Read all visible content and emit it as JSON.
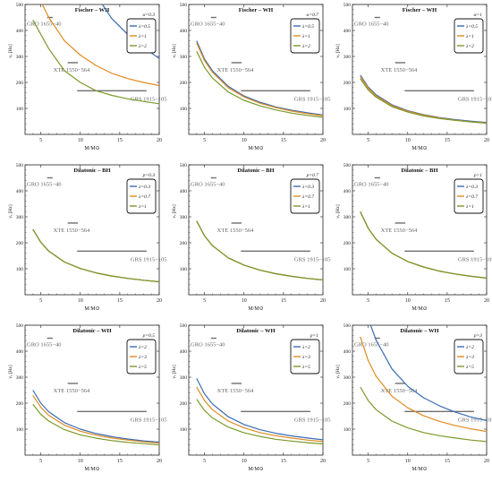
{
  "chart_data": [
    {
      "type": "line",
      "title": "Fischer – WH",
      "param": "α=0.3",
      "xlabel": "M/M⊙",
      "ylabel": "νₑ [Hz]",
      "xlim": [
        3,
        20
      ],
      "ylim": [
        0,
        500
      ],
      "xticks": [
        5,
        10,
        15,
        20
      ],
      "yticks": [
        100,
        200,
        300,
        400,
        500
      ],
      "colors": [
        "#3a6cb4",
        "#e08a1e",
        "#7a9a2a"
      ],
      "series": [
        {
          "name": "λ=0.5",
          "x": [
            12.8,
            14,
            16,
            18,
            20
          ],
          "y": [
            500,
            445,
            385,
            335,
            292
          ]
        },
        {
          "name": "λ=1",
          "x": [
            5.2,
            6,
            8,
            10,
            12,
            14,
            16,
            18,
            20
          ],
          "y": [
            500,
            450,
            360,
            305,
            265,
            235,
            215,
            200,
            188
          ]
        },
        {
          "name": "λ=2",
          "x": [
            4,
            5,
            6,
            8,
            10,
            12,
            14,
            16,
            18,
            20
          ],
          "y": [
            440,
            385,
            330,
            245,
            200,
            168,
            150,
            137,
            127,
            118
          ]
        }
      ],
      "observations": [
        {
          "label": "GRO 1655−40",
          "xmin": 5.8,
          "xmax": 6.5,
          "y": 450
        },
        {
          "label": "XTE 1550−564",
          "xmin": 8.4,
          "xmax": 9.7,
          "y": 276
        },
        {
          "label": "GRS 1915−105",
          "xmin": 9.6,
          "xmax": 18.4,
          "y": 168
        }
      ]
    },
    {
      "type": "line",
      "title": "Fischer – WH",
      "param": "α=0.7",
      "xlabel": "M/M⊙",
      "ylabel": "νₑ [Hz]",
      "xlim": [
        3,
        20
      ],
      "ylim": [
        0,
        500
      ],
      "xticks": [
        5,
        10,
        15,
        20
      ],
      "yticks": [
        100,
        200,
        300,
        400,
        500
      ],
      "colors": [
        "#3a6cb4",
        "#e08a1e",
        "#7a9a2a"
      ],
      "series": [
        {
          "name": "λ=0.5",
          "x": [
            4,
            5,
            6,
            8,
            10,
            12,
            14,
            16,
            18,
            20
          ],
          "y": [
            360,
            290,
            245,
            185,
            148,
            124,
            106,
            93,
            83,
            75
          ]
        },
        {
          "name": "λ=1",
          "x": [
            4,
            5,
            6,
            8,
            10,
            12,
            14,
            16,
            18,
            20
          ],
          "y": [
            352,
            284,
            239,
            180,
            144,
            120,
            103,
            90,
            80,
            72
          ]
        },
        {
          "name": "λ=2",
          "x": [
            4,
            5,
            6,
            8,
            10,
            12,
            14,
            16,
            18,
            20
          ],
          "y": [
            320,
            258,
            217,
            163,
            131,
            110,
            94,
            82,
            73,
            66
          ]
        }
      ],
      "observations": [
        {
          "label": "GRO 1655−40",
          "xmin": 5.8,
          "xmax": 6.5,
          "y": 450
        },
        {
          "label": "XTE 1550−564",
          "xmin": 8.4,
          "xmax": 9.7,
          "y": 276
        },
        {
          "label": "GRS 1915−105",
          "xmin": 9.6,
          "xmax": 18.4,
          "y": 168
        }
      ]
    },
    {
      "type": "line",
      "title": "Fischer – WH",
      "param": "α=1",
      "xlabel": "M/M⊙",
      "ylabel": "νₑ [Hz]",
      "xlim": [
        3,
        20
      ],
      "ylim": [
        0,
        500
      ],
      "xticks": [
        5,
        10,
        15,
        20
      ],
      "yticks": [
        100,
        200,
        300,
        400,
        500
      ],
      "colors": [
        "#3a6cb4",
        "#e08a1e",
        "#7a9a2a"
      ],
      "series": [
        {
          "name": "λ=0.5",
          "x": [
            4,
            5,
            6,
            8,
            10,
            12,
            14,
            16,
            18,
            20
          ],
          "y": [
            228,
            182,
            152,
            114,
            91,
            76,
            65,
            57,
            51,
            46
          ]
        },
        {
          "name": "λ=1",
          "x": [
            4,
            5,
            6,
            8,
            10,
            12,
            14,
            16,
            18,
            20
          ],
          "y": [
            222,
            178,
            148,
            111,
            89,
            74,
            63,
            55,
            49,
            44
          ]
        },
        {
          "name": "λ=2",
          "x": [
            4,
            5,
            6,
            8,
            10,
            12,
            14,
            16,
            18,
            20
          ],
          "y": [
            214,
            171,
            143,
            107,
            86,
            71,
            61,
            54,
            48,
            43
          ]
        }
      ],
      "observations": [
        {
          "label": "GRO 1655−40",
          "xmin": 5.8,
          "xmax": 6.5,
          "y": 450
        },
        {
          "label": "XTE 1550−564",
          "xmin": 8.4,
          "xmax": 9.7,
          "y": 276
        },
        {
          "label": "GRS 1915−105",
          "xmin": 9.6,
          "xmax": 18.4,
          "y": 168
        }
      ]
    },
    {
      "type": "line",
      "title": "Dilatonic – BH",
      "param": "p=0.3",
      "xlabel": "M/M⊙",
      "ylabel": "νₑ [Hz]",
      "xlim": [
        3,
        20
      ],
      "ylim": [
        0,
        500
      ],
      "xticks": [
        5,
        10,
        15,
        20
      ],
      "yticks": [
        100,
        200,
        300,
        400,
        500
      ],
      "colors": [
        "#3a6cb4",
        "#e08a1e",
        "#7a9a2a"
      ],
      "series": [
        {
          "name": "λ=0.3",
          "x": [
            4,
            5,
            6,
            8,
            10,
            12,
            14,
            16,
            18,
            20
          ],
          "y": [
            252,
            202,
            168,
            126,
            101,
            84,
            72,
            63,
            56,
            50
          ]
        },
        {
          "name": "λ=0.7",
          "x": [
            4,
            5,
            6,
            8,
            10,
            12,
            14,
            16,
            18,
            20
          ],
          "y": [
            252,
            202,
            168,
            126,
            101,
            84,
            72,
            63,
            56,
            50
          ]
        },
        {
          "name": "λ=1",
          "x": [
            4,
            5,
            6,
            8,
            10,
            12,
            14,
            16,
            18,
            20
          ],
          "y": [
            252,
            202,
            168,
            126,
            101,
            84,
            72,
            63,
            56,
            50
          ]
        }
      ],
      "observations": [
        {
          "label": "GRO 1655−40",
          "xmin": 5.8,
          "xmax": 6.5,
          "y": 450
        },
        {
          "label": "XTE 1550−564",
          "xmin": 8.4,
          "xmax": 9.7,
          "y": 276
        },
        {
          "label": "GRS 1915−105",
          "xmin": 9.6,
          "xmax": 18.4,
          "y": 168
        }
      ]
    },
    {
      "type": "line",
      "title": "Dilatonic – BH",
      "param": "p=0.7",
      "xlabel": "M/M⊙",
      "ylabel": "νₑ [Hz]",
      "xlim": [
        3,
        20
      ],
      "ylim": [
        0,
        500
      ],
      "xticks": [
        5,
        10,
        15,
        20
      ],
      "yticks": [
        100,
        200,
        300,
        400,
        500
      ],
      "colors": [
        "#3a6cb4",
        "#e08a1e",
        "#7a9a2a"
      ],
      "series": [
        {
          "name": "λ=0.3",
          "x": [
            4,
            5,
            6,
            8,
            10,
            12,
            14,
            16,
            18,
            20
          ],
          "y": [
            284,
            227,
            189,
            142,
            114,
            95,
            81,
            71,
            63,
            57
          ]
        },
        {
          "name": "λ=0.7",
          "x": [
            4,
            5,
            6,
            8,
            10,
            12,
            14,
            16,
            18,
            20
          ],
          "y": [
            284,
            227,
            189,
            142,
            114,
            95,
            81,
            71,
            63,
            57
          ]
        },
        {
          "name": "λ=1",
          "x": [
            4,
            5,
            6,
            8,
            10,
            12,
            14,
            16,
            18,
            20
          ],
          "y": [
            284,
            227,
            189,
            142,
            114,
            95,
            81,
            71,
            63,
            57
          ]
        }
      ],
      "observations": [
        {
          "label": "GRO 1655−40",
          "xmin": 5.8,
          "xmax": 6.5,
          "y": 450
        },
        {
          "label": "XTE 1550−564",
          "xmin": 8.4,
          "xmax": 9.7,
          "y": 276
        },
        {
          "label": "GRS 1915−105",
          "xmin": 9.6,
          "xmax": 18.4,
          "y": 168
        }
      ]
    },
    {
      "type": "line",
      "title": "Dilatonic – BH",
      "param": "p=1",
      "xlabel": "M/M⊙",
      "ylabel": "νₑ [Hz]",
      "xlim": [
        3,
        20
      ],
      "ylim": [
        0,
        500
      ],
      "xticks": [
        5,
        10,
        15,
        20
      ],
      "yticks": [
        100,
        200,
        300,
        400,
        500
      ],
      "colors": [
        "#3a6cb4",
        "#e08a1e",
        "#7a9a2a"
      ],
      "series": [
        {
          "name": "λ=0.3",
          "x": [
            4,
            5,
            6,
            8,
            10,
            12,
            14,
            16,
            18,
            20
          ],
          "y": [
            320,
            256,
            213,
            160,
            128,
            107,
            91,
            80,
            71,
            64
          ]
        },
        {
          "name": "λ=0.7",
          "x": [
            4,
            5,
            6,
            8,
            10,
            12,
            14,
            16,
            18,
            20
          ],
          "y": [
            320,
            256,
            213,
            160,
            128,
            107,
            91,
            80,
            71,
            64
          ]
        },
        {
          "name": "λ=1",
          "x": [
            4,
            5,
            6,
            8,
            10,
            12,
            14,
            16,
            18,
            20
          ],
          "y": [
            320,
            256,
            213,
            160,
            128,
            107,
            91,
            80,
            71,
            64
          ]
        }
      ],
      "observations": [
        {
          "label": "GRO 1655−40",
          "xmin": 5.8,
          "xmax": 6.5,
          "y": 450
        },
        {
          "label": "XTE 1550−564",
          "xmin": 8.4,
          "xmax": 9.7,
          "y": 276
        },
        {
          "label": "GRS 1915−105",
          "xmin": 9.6,
          "xmax": 18.4,
          "y": 168
        }
      ]
    },
    {
      "type": "line",
      "title": "Dilatonic – WH",
      "param": "p=0.5",
      "xlabel": "M/M⊙",
      "ylabel": "νₑ [Hz]",
      "xlim": [
        3,
        20
      ],
      "ylim": [
        0,
        500
      ],
      "xticks": [
        5,
        10,
        15,
        20
      ],
      "yticks": [
        100,
        200,
        300,
        400,
        500
      ],
      "colors": [
        "#3a6cb4",
        "#e08a1e",
        "#7a9a2a"
      ],
      "series": [
        {
          "name": "λ=2",
          "x": [
            4,
            5,
            6,
            8,
            10,
            12,
            14,
            16,
            18,
            20
          ],
          "y": [
            250,
            200,
            167,
            125,
            100,
            83,
            71,
            62,
            55,
            50
          ]
        },
        {
          "name": "λ=3",
          "x": [
            4,
            5,
            6,
            8,
            10,
            12,
            14,
            16,
            18,
            20
          ],
          "y": [
            230,
            184,
            153,
            115,
            92,
            77,
            66,
            58,
            51,
            46
          ]
        },
        {
          "name": "λ=5",
          "x": [
            4,
            5,
            6,
            8,
            10,
            12,
            14,
            16,
            18,
            20
          ],
          "y": [
            196,
            157,
            131,
            98,
            78,
            65,
            56,
            49,
            44,
            39
          ]
        }
      ],
      "observations": [
        {
          "label": "GRO 1655−40",
          "xmin": 5.8,
          "xmax": 6.5,
          "y": 450
        },
        {
          "label": "XTE 1550−564",
          "xmin": 8.4,
          "xmax": 9.7,
          "y": 276
        },
        {
          "label": "GRS 1915−105",
          "xmin": 9.6,
          "xmax": 18.4,
          "y": 168
        }
      ]
    },
    {
      "type": "line",
      "title": "Dilatonic – WH",
      "param": "p=1",
      "xlabel": "M/M⊙",
      "ylabel": "νₑ [Hz]",
      "xlim": [
        3,
        20
      ],
      "ylim": [
        0,
        500
      ],
      "xticks": [
        5,
        10,
        15,
        20
      ],
      "yticks": [
        100,
        200,
        300,
        400,
        500
      ],
      "colors": [
        "#3a6cb4",
        "#e08a1e",
        "#7a9a2a"
      ],
      "series": [
        {
          "name": "λ=2",
          "x": [
            4,
            5,
            6,
            8,
            10,
            12,
            14,
            16,
            18,
            20
          ],
          "y": [
            295,
            236,
            197,
            148,
            118,
            98,
            84,
            74,
            66,
            59
          ]
        },
        {
          "name": "λ=3",
          "x": [
            4,
            5,
            6,
            8,
            10,
            12,
            14,
            16,
            18,
            20
          ],
          "y": [
            262,
            210,
            175,
            131,
            105,
            87,
            75,
            66,
            58,
            52
          ]
        },
        {
          "name": "λ=5",
          "x": [
            4,
            5,
            6,
            8,
            10,
            12,
            14,
            16,
            18,
            20
          ],
          "y": [
            215,
            172,
            143,
            108,
            86,
            72,
            61,
            54,
            48,
            43
          ]
        }
      ],
      "observations": [
        {
          "label": "GRO 1655−40",
          "xmin": 5.8,
          "xmax": 6.5,
          "y": 450
        },
        {
          "label": "XTE 1550−564",
          "xmin": 8.4,
          "xmax": 9.7,
          "y": 276
        },
        {
          "label": "GRS 1915−105",
          "xmin": 9.6,
          "xmax": 18.4,
          "y": 168
        }
      ]
    },
    {
      "type": "line",
      "title": "Dilatonic – WH",
      "param": "p=3",
      "xlabel": "M/M⊙",
      "ylabel": "νₑ [Hz]",
      "xlim": [
        3,
        20
      ],
      "ylim": [
        0,
        500
      ],
      "xticks": [
        5,
        10,
        15,
        20
      ],
      "yticks": [
        100,
        200,
        300,
        400,
        500
      ],
      "colors": [
        "#3a6cb4",
        "#e08a1e",
        "#7a9a2a"
      ],
      "series": [
        {
          "name": "λ=2",
          "x": [
            5.3,
            6,
            8,
            10,
            12,
            14,
            16,
            18,
            20
          ],
          "y": [
            500,
            442,
            332,
            265,
            221,
            190,
            166,
            147,
            133
          ]
        },
        {
          "name": "λ=3",
          "x": [
            4,
            5,
            6,
            8,
            10,
            12,
            14,
            16,
            18,
            20
          ],
          "y": [
            455,
            364,
            303,
            227,
            182,
            152,
            130,
            114,
            101,
            91
          ]
        },
        {
          "name": "λ=5",
          "x": [
            4,
            5,
            6,
            8,
            10,
            12,
            14,
            16,
            18,
            20
          ],
          "y": [
            262,
            210,
            175,
            131,
            105,
            87,
            75,
            66,
            58,
            52
          ]
        }
      ],
      "observations": [
        {
          "label": "GRO 1655−40",
          "xmin": 5.8,
          "xmax": 6.5,
          "y": 450
        },
        {
          "label": "XTE 1550−564",
          "xmin": 8.4,
          "xmax": 9.7,
          "y": 276
        },
        {
          "label": "GRS 1915−105",
          "xmin": 9.6,
          "xmax": 18.4,
          "y": 168
        }
      ]
    }
  ]
}
